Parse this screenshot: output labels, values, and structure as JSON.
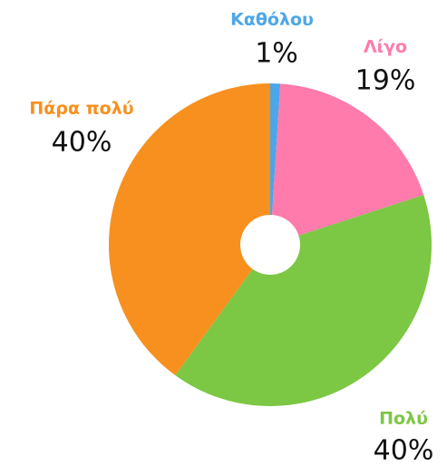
{
  "chart_data": {
    "type": "pie",
    "categories": [
      "Καθόλου",
      "Λίγο",
      "Πολύ",
      "Πάρα πολύ"
    ],
    "values": [
      1,
      19,
      40,
      40
    ],
    "value_labels": [
      "1%",
      "19%",
      "40%",
      "40%"
    ],
    "colors": [
      "#4da6e8",
      "#ff7bac",
      "#7cc744",
      "#f7901e"
    ]
  }
}
